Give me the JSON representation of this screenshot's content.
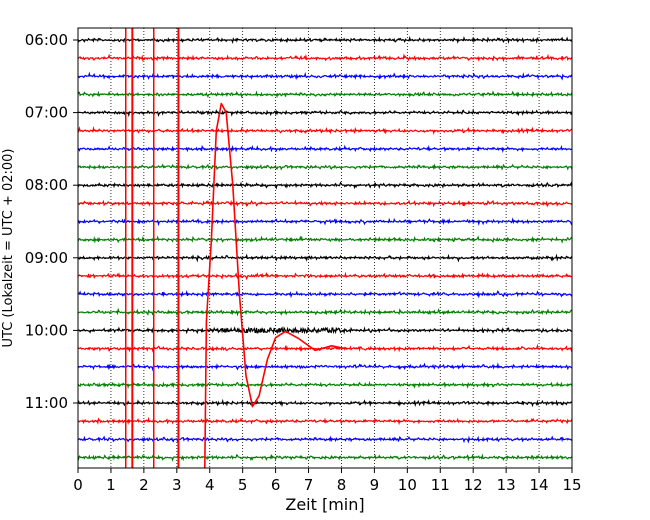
{
  "chart_data": {
    "type": "line",
    "title": "",
    "xlabel": "Zeit  [min]",
    "ylabel": "UTC (Lokalzeit = UTC + 02:00)",
    "xlim": [
      0,
      15
    ],
    "x_ticks": [
      0,
      1,
      2,
      3,
      4,
      5,
      6,
      7,
      8,
      9,
      10,
      11,
      12,
      13,
      14,
      15
    ],
    "y_tick_labels": [
      "06:00",
      "07:00",
      "08:00",
      "09:00",
      "10:00",
      "11:00"
    ],
    "y_tick_rows": [
      0,
      4,
      8,
      12,
      16,
      20
    ],
    "grid": true,
    "trace_count": 24,
    "trace_colors": [
      "#000000",
      "#ff0000",
      "#0000ff",
      "#008000"
    ],
    "start_utc": "06:00",
    "minutes_per_trace": 15,
    "event": {
      "color": "#ff0000",
      "onset_trace": 17,
      "spikes_min": [
        1.45,
        1.65,
        2.3,
        3.05
      ],
      "wave": [
        [
          3.9,
          1.5
        ],
        [
          4.05,
          6
        ],
        [
          4.2,
          12
        ],
        [
          4.35,
          13.5
        ],
        [
          4.5,
          13.0
        ],
        [
          4.7,
          9
        ],
        [
          4.9,
          3
        ],
        [
          5.1,
          -1.5
        ],
        [
          5.3,
          -3.2
        ],
        [
          5.5,
          -2.6
        ],
        [
          5.75,
          -0.6
        ],
        [
          6.0,
          0.6
        ],
        [
          6.3,
          0.95
        ],
        [
          6.7,
          0.55
        ],
        [
          7.2,
          -0.1
        ],
        [
          7.7,
          0.15
        ],
        [
          8.1,
          0.0
        ]
      ]
    }
  }
}
